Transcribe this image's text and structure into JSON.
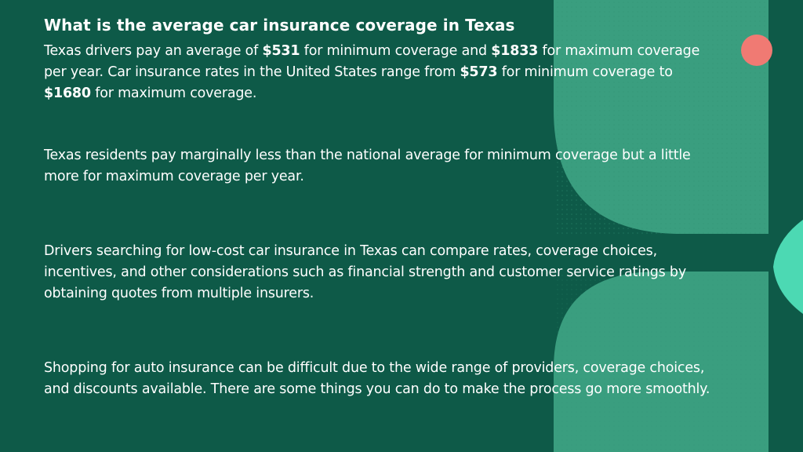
{
  "slide": {
    "title": "What is the average car insurance coverage in Texas",
    "paragraph1": {
      "t1": "Texas drivers pay an average of ",
      "v1": "$531",
      "t2": " for minimum coverage and ",
      "v2": "$1833",
      "t3": " for maximum coverage per year. Car insurance rates in the United States range from ",
      "v3": "$573",
      "t4": " for minimum coverage to ",
      "v4": "$1680",
      "t5": " for maximum coverage."
    },
    "paragraph2": "Texas residents pay marginally less than the national average for minimum coverage but a little more for maximum coverage per year.",
    "paragraph3": "Drivers searching for low-cost car insurance in Texas can compare rates, coverage choices, incentives, and other considerations such as financial strength and customer service ratings by obtaining quotes from multiple insurers.",
    "paragraph4": "Shopping for auto insurance can be difficult due to the wide range of providers, coverage choices, and discounts available. There are some things you can do to make the process go more smoothly."
  },
  "colors": {
    "background": "#0e5a48",
    "shape_green": "#3a9e7f",
    "shape_light": "#4cd9b3",
    "dot_coral": "#f07a73"
  }
}
